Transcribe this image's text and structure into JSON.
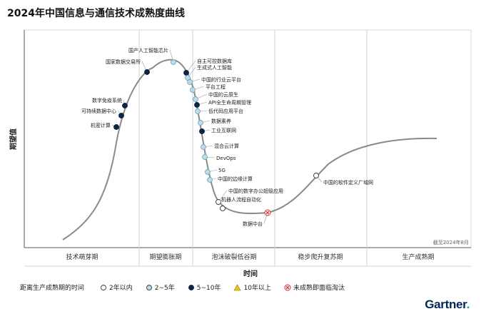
{
  "title": "2024年中国信息与通信技术成熟度曲线",
  "brand": {
    "name": "Gartner",
    "color": "#002856",
    "dot_color": "#00a7b5"
  },
  "chart_data": {
    "type": "hype-cycle",
    "title": "2024年中国信息与通信技术成熟度曲线",
    "xlabel": "时间",
    "ylabel": "期望值",
    "as_of": "截至2024年8月",
    "phases": [
      "技术萌芽期",
      "期望膨胀期",
      "泡沫破裂低谷期",
      "稳步爬升复苏期",
      "生产成熟期"
    ],
    "legend": {
      "title": "距离生产成熟期的时间",
      "items": [
        {
          "key": "lt2",
          "label": "2年以内",
          "color": "#ffffff",
          "shape": "circle"
        },
        {
          "key": "2to5",
          "label": "2~5年",
          "color": "#bcdcec",
          "shape": "circle"
        },
        {
          "key": "5to10",
          "label": "5~10年",
          "color": "#0b2545",
          "shape": "circle"
        },
        {
          "key": "gt10",
          "label": "10年以上",
          "color": "#f0c419",
          "shape": "triangle"
        },
        {
          "key": "obsolete",
          "label": "未成熟即面临淘汰",
          "color": "#d62728",
          "shape": "x"
        }
      ]
    },
    "technologies": [
      {
        "name": "机密计算",
        "cat": "5to10"
      },
      {
        "name": "可持续数据中心",
        "cat": "5to10"
      },
      {
        "name": "数字免疫系统",
        "cat": "5to10"
      },
      {
        "name": "国家数据交易所",
        "cat": "5to10"
      },
      {
        "name": "国产人工智能芯片",
        "cat": "2to5"
      },
      {
        "name": "自主可控数据库",
        "cat": "5to10"
      },
      {
        "name": "生成式人工智能",
        "cat": "2to5"
      },
      {
        "name": "中国的行业云平台",
        "cat": "2to5"
      },
      {
        "name": "平台工程",
        "cat": "2to5"
      },
      {
        "name": "中国的云原生",
        "cat": "2to5"
      },
      {
        "name": "API全生命周期管理",
        "cat": "5to10"
      },
      {
        "name": "低代码应用平台",
        "cat": "2to5"
      },
      {
        "name": "数据素养",
        "cat": "2to5"
      },
      {
        "name": "工业互联网",
        "cat": "5to10"
      },
      {
        "name": "混合云计算",
        "cat": "2to5"
      },
      {
        "name": "DevOps",
        "cat": "2to5"
      },
      {
        "name": "5G",
        "cat": "2to5"
      },
      {
        "name": "中国的边缘计算",
        "cat": "2to5"
      },
      {
        "name": "中国的数字办公超级应用",
        "cat": "lt2"
      },
      {
        "name": "机器人流程自动化",
        "cat": "lt2"
      },
      {
        "name": "数据中台",
        "cat": "obsolete"
      },
      {
        "name": "中国的软件定义广域网",
        "cat": "lt2"
      }
    ]
  }
}
